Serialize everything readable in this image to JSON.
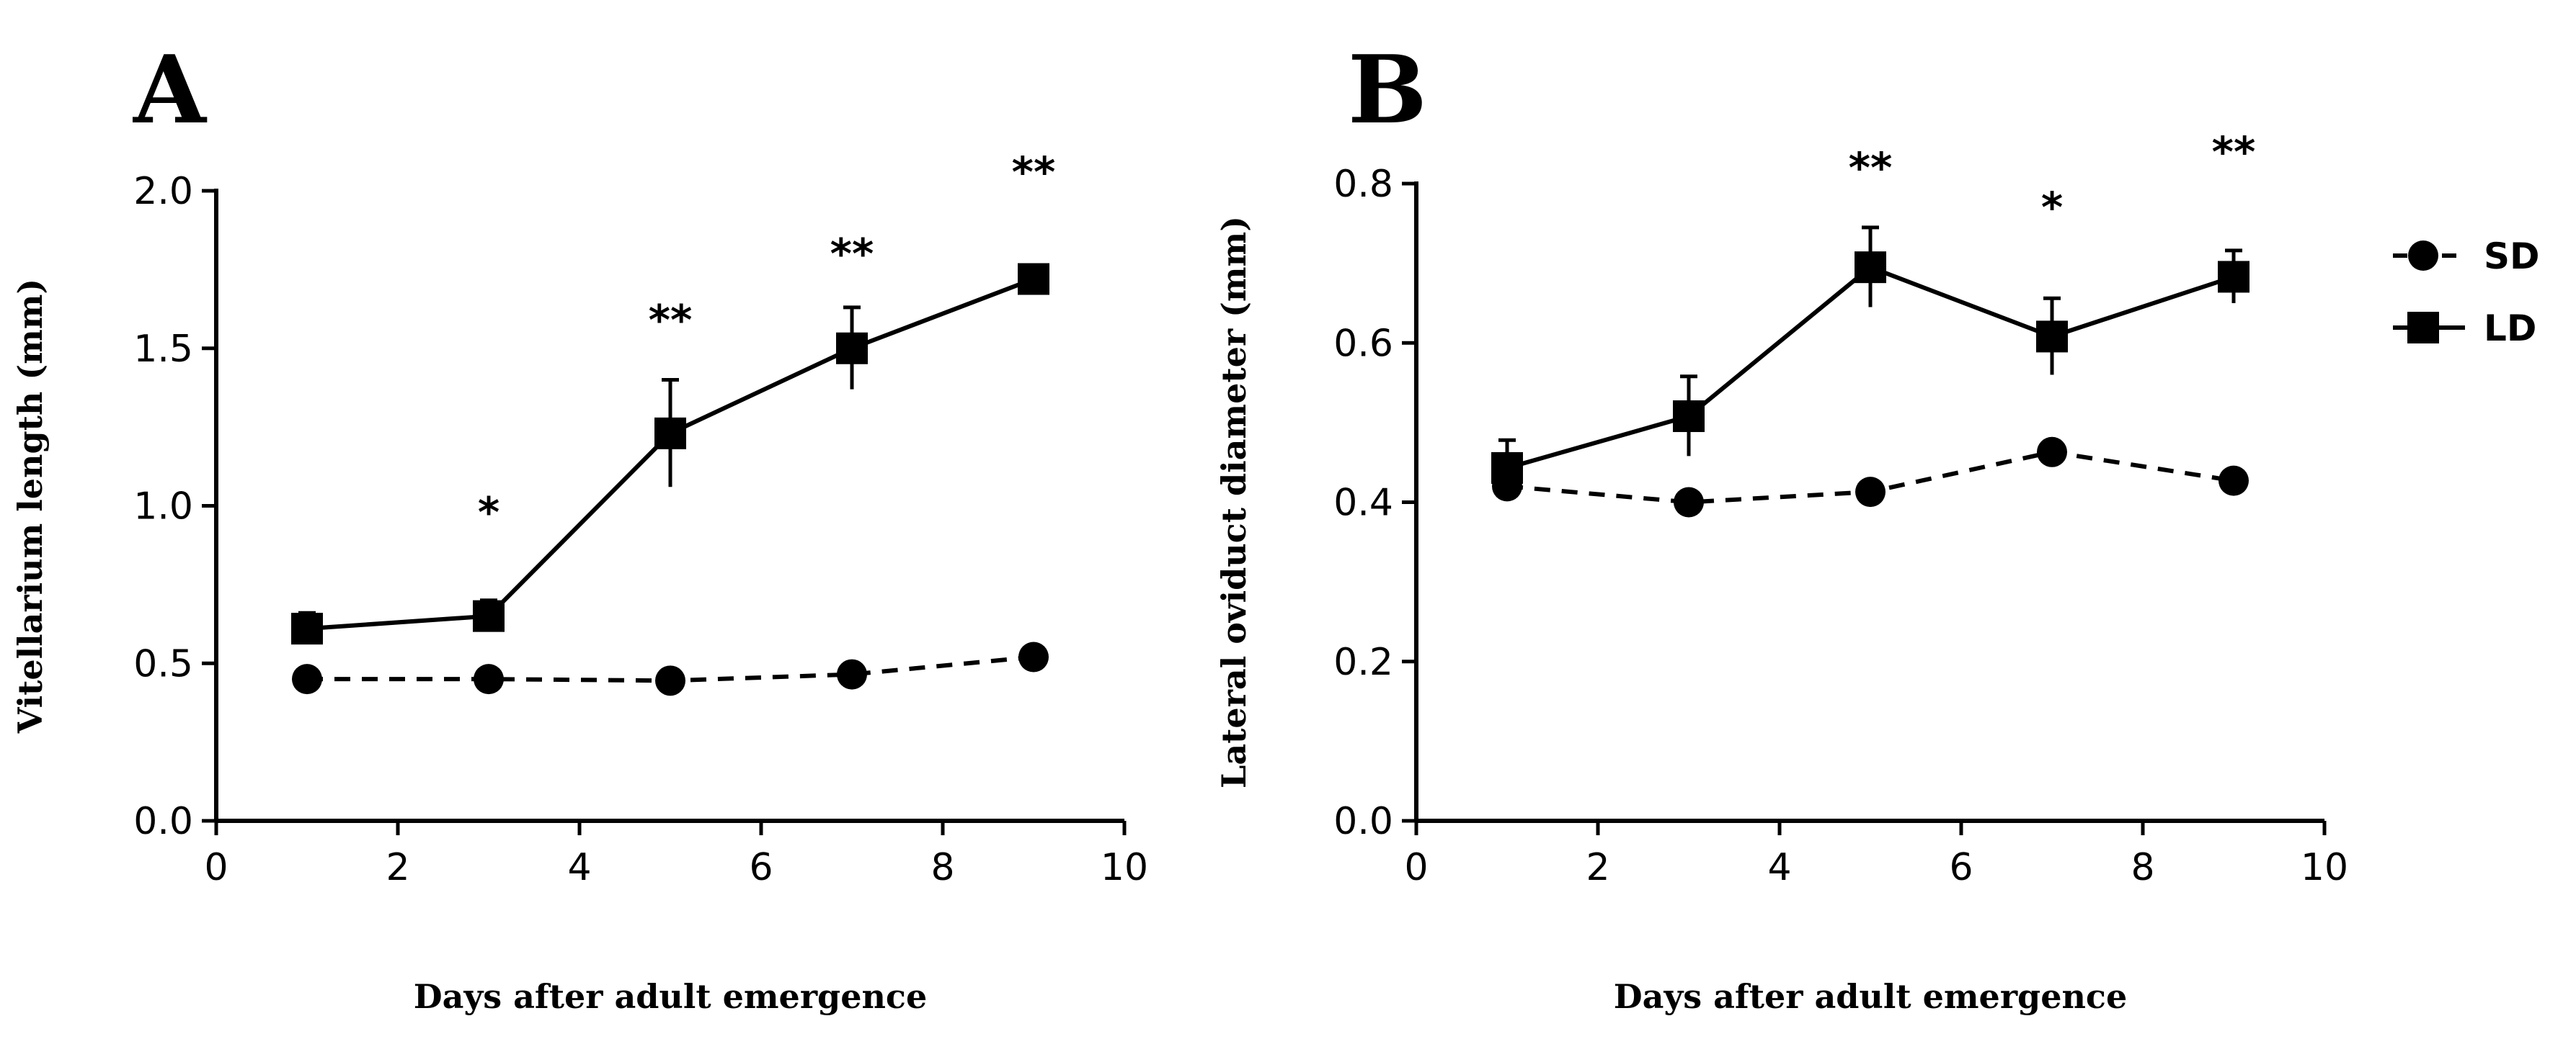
{
  "chart_data": [
    {
      "type": "line",
      "panel_label": "A",
      "xlabel": "Days after adult emergence",
      "ylabel": "Vitellarium length   (mm)",
      "xlim": [
        0,
        10
      ],
      "ylim": [
        0,
        2.0
      ],
      "xticks": [
        0,
        2,
        4,
        6,
        8,
        10
      ],
      "yticks": [
        0.0,
        0.5,
        1.0,
        1.5,
        2.0
      ],
      "ytick_labels": [
        "0.0",
        "0.5",
        "1.0",
        "1.5",
        "2.0"
      ],
      "series": [
        {
          "name": "SD",
          "marker": "circle",
          "line": "dashed",
          "x": [
            1,
            3,
            5,
            7,
            9
          ],
          "values": [
            0.45,
            0.45,
            0.445,
            0.465,
            0.52
          ],
          "errors": [
            0,
            0,
            0,
            0,
            0
          ]
        },
        {
          "name": "LD",
          "marker": "square",
          "line": "solid",
          "x": [
            1,
            3,
            5,
            7,
            9
          ],
          "values": [
            0.61,
            0.65,
            1.23,
            1.5,
            1.72
          ],
          "errors": [
            0.05,
            0.05,
            0.17,
            0.13,
            0.02
          ]
        }
      ],
      "annotations": [
        {
          "x": 3,
          "y": 0.98,
          "text": "*"
        },
        {
          "x": 5,
          "y": 1.59,
          "text": "**"
        },
        {
          "x": 7,
          "y": 1.8,
          "text": "**"
        },
        {
          "x": 9,
          "y": 2.06,
          "text": "**"
        }
      ]
    },
    {
      "type": "line",
      "panel_label": "B",
      "xlabel": "Days after adult emergence",
      "ylabel": "Lateral oviduct diameter (mm)",
      "xlim": [
        0,
        10
      ],
      "ylim": [
        0,
        0.8
      ],
      "xticks": [
        0,
        2,
        4,
        6,
        8,
        10
      ],
      "yticks": [
        0.0,
        0.2,
        0.4,
        0.6,
        0.8
      ],
      "ytick_labels": [
        "0.0",
        "0.2",
        "0.4",
        "0.6",
        "0.8"
      ],
      "series": [
        {
          "name": "SD",
          "marker": "circle",
          "line": "dashed",
          "x": [
            1,
            3,
            5,
            7,
            9
          ],
          "values": [
            0.42,
            0.4,
            0.413,
            0.463,
            0.427
          ],
          "errors": [
            0,
            0,
            0,
            0,
            0
          ]
        },
        {
          "name": "LD",
          "marker": "square",
          "line": "solid",
          "x": [
            1,
            3,
            5,
            7,
            9
          ],
          "values": [
            0.443,
            0.508,
            0.695,
            0.608,
            0.683
          ],
          "errors": [
            0.035,
            0.05,
            0.05,
            0.048,
            0.033
          ]
        }
      ],
      "annotations": [
        {
          "x": 5,
          "y": 0.82,
          "text": "**"
        },
        {
          "x": 7,
          "y": 0.77,
          "text": "*"
        },
        {
          "x": 9,
          "y": 0.84,
          "text": "**"
        }
      ]
    }
  ],
  "legend": {
    "placement": "right",
    "entries": [
      {
        "name": "SD",
        "label": "SD",
        "marker": "circle",
        "line": "dashed"
      },
      {
        "name": "LD",
        "label": "LD",
        "marker": "square",
        "line": "solid"
      }
    ]
  },
  "colors": {
    "ink": "#000000",
    "background": "#ffffff"
  }
}
